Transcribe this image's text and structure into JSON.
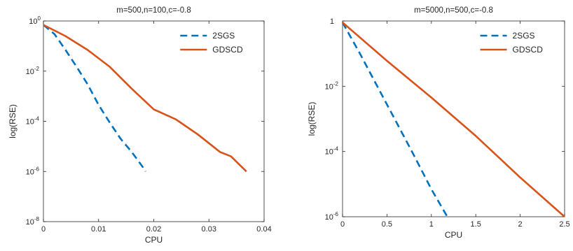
{
  "chart_data": [
    {
      "type": "line",
      "title": "m=500,n=100,c=-0.8",
      "xlabel": "CPU",
      "ylabel": "log(RSE)",
      "x_scale": "linear",
      "y_scale": "log",
      "xlim": [
        0,
        0.04
      ],
      "ylim": [
        1e-08,
        1
      ],
      "x_ticks": [
        0,
        0.01,
        0.02,
        0.03,
        0.04
      ],
      "x_tick_labels": [
        "0",
        "0.01",
        "0.02",
        "0.03",
        "0.04"
      ],
      "y_ticks": [
        1e-08,
        1e-06,
        0.0001,
        0.01,
        1
      ],
      "y_tick_labels": [
        {
          "base": "10",
          "exp": "-8"
        },
        {
          "base": "10",
          "exp": "-6"
        },
        {
          "base": "10",
          "exp": "-4"
        },
        {
          "base": "10",
          "exp": "-2"
        },
        {
          "base": "10",
          "exp": "0"
        }
      ],
      "grid": false,
      "legend_position": "top-right",
      "series": [
        {
          "name": "2SGS",
          "style": "dashed",
          "color": "#0072BD",
          "x": [
            0,
            0.002,
            0.004,
            0.006,
            0.008,
            0.01,
            0.012,
            0.014,
            0.016,
            0.018,
            0.0185
          ],
          "y": [
            0.7,
            0.3,
            0.07,
            0.015,
            0.003,
            0.00045,
            9e-05,
            2e-05,
            6e-06,
            1.5e-06,
            1e-06
          ]
        },
        {
          "name": "GDSCD",
          "style": "solid",
          "color": "#D95319",
          "x": [
            0,
            0.004,
            0.008,
            0.012,
            0.016,
            0.02,
            0.024,
            0.028,
            0.032,
            0.034,
            0.0368
          ],
          "y": [
            0.7,
            0.25,
            0.07,
            0.015,
            0.002,
            0.0003,
            0.00012,
            3e-05,
            6e-06,
            4e-06,
            1e-06
          ]
        }
      ]
    },
    {
      "type": "line",
      "title": "m=5000,n=500,c=-0.8",
      "xlabel": "CPU",
      "ylabel": "log(RSE)",
      "x_scale": "linear",
      "y_scale": "log",
      "xlim": [
        0,
        2.5
      ],
      "ylim": [
        1e-06,
        1
      ],
      "x_ticks": [
        0,
        0.5,
        1,
        1.5,
        2,
        2.5
      ],
      "x_tick_labels": [
        "0",
        "0.5",
        "1",
        "1.5",
        "2",
        "2.5"
      ],
      "y_ticks": [
        1e-06,
        0.0001,
        0.01,
        1
      ],
      "y_tick_labels": [
        {
          "base": "10",
          "exp": "-6"
        },
        {
          "base": "10",
          "exp": "-4"
        },
        {
          "base": "10",
          "exp": "-2"
        },
        {
          "base": "10",
          "exp": ""
        }
      ],
      "y_top_label_plain": "1",
      "grid": false,
      "legend_position": "top-right",
      "series": [
        {
          "name": "2SGS",
          "style": "dashed",
          "color": "#0072BD",
          "x": [
            0,
            0.2,
            0.4,
            0.6,
            0.8,
            1.0,
            1.18
          ],
          "y": [
            0.9,
            0.095,
            0.009,
            0.00085,
            8e-05,
            7e-06,
            1e-06
          ]
        },
        {
          "name": "GDSCD",
          "style": "solid",
          "color": "#D95319",
          "x": [
            0,
            0.5,
            1.0,
            1.5,
            2.0,
            2.5
          ],
          "y": [
            0.9,
            0.06,
            0.0045,
            0.0003,
            1.6e-05,
            1e-06
          ]
        }
      ]
    }
  ]
}
